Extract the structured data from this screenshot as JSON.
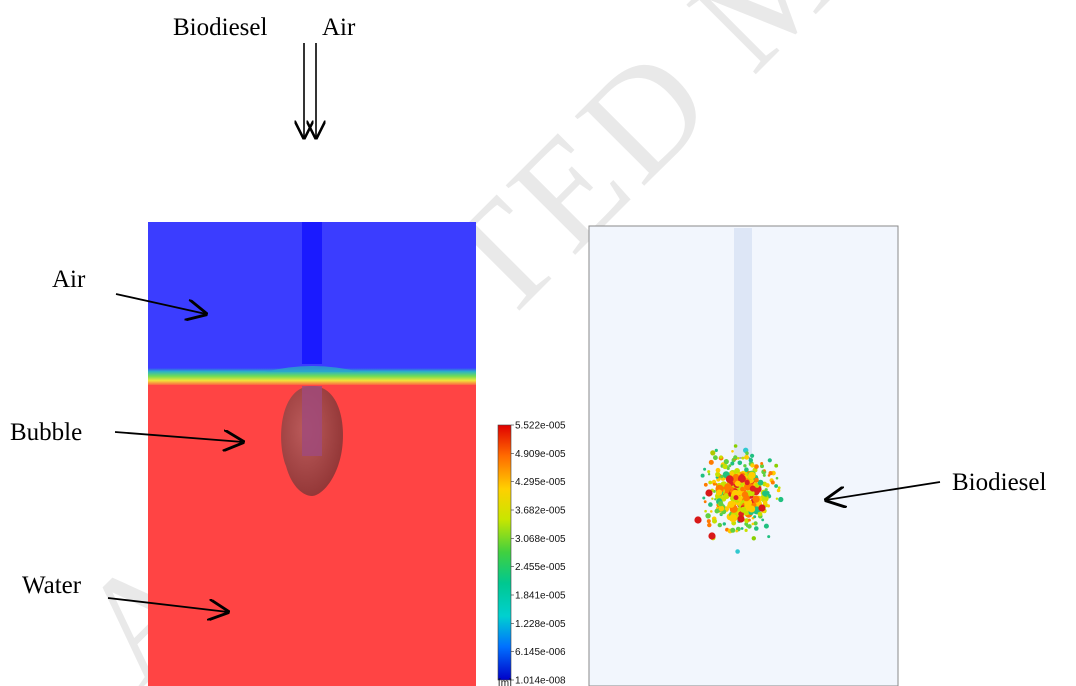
{
  "inlet_labels": {
    "biodiesel": "Biodiesel",
    "air": "Air"
  },
  "left_panel_labels": {
    "air": "Air",
    "bubble": "Bubble",
    "water": "Water"
  },
  "right_panel_labels": {
    "biodiesel": "Biodiesel"
  },
  "legend": {
    "unit": "[m]",
    "ticks": [
      "5.522e-005",
      "4.909e-005",
      "4.295e-005",
      "3.682e-005",
      "3.068e-005",
      "2.455e-005",
      "1.841e-005",
      "1.228e-005",
      "6.145e-006",
      "1.014e-008"
    ],
    "colors_top_to_bottom": [
      "#d7191c",
      "#f46d43",
      "#fdae61",
      "#d9ef8b",
      "#66bd63",
      "#1a9850",
      "#35c0b0",
      "#2b83ba",
      "#1f3fbf",
      "#0000c8"
    ]
  },
  "watermark": {
    "text": "ACCEPTED MANUSCRIPT"
  },
  "colors": {
    "air_phase": "#3b3dff",
    "water_phase": "#ff4444",
    "nozzle": "#1a1aff",
    "bubble": "#8c3a3a",
    "right_panel_bg": "#f2f6fd"
  }
}
